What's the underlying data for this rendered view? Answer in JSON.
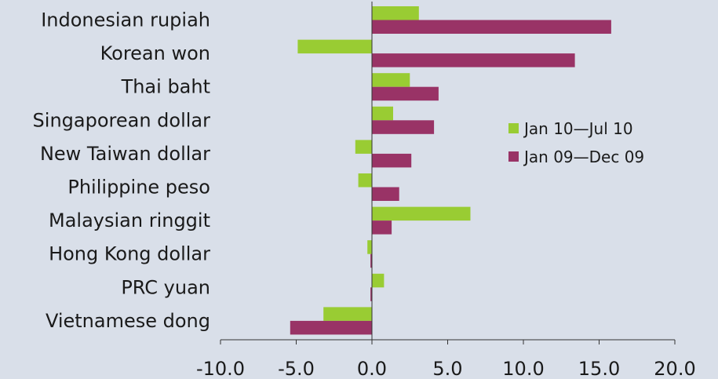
{
  "chart_data": {
    "type": "bar",
    "orientation": "horizontal",
    "categories": [
      "Indonesian rupiah",
      "Korean won",
      "Thai baht",
      "Singaporean dollar",
      "New Taiwan dollar",
      "Philippine peso",
      "Malaysian ringgit",
      "Hong Kong dollar",
      "PRC yuan",
      "Vietnamese dong"
    ],
    "series": [
      {
        "name": "Jan 10—Jul 10",
        "color": "#99cc33",
        "values": [
          3.1,
          -4.9,
          2.5,
          1.4,
          -1.1,
          -0.9,
          6.5,
          -0.3,
          0.8,
          -3.2
        ]
      },
      {
        "name": "Jan 09—Dec 09",
        "color": "#993366",
        "values": [
          15.8,
          13.4,
          4.4,
          4.1,
          2.6,
          1.8,
          1.3,
          -0.1,
          -0.1,
          -5.4
        ]
      }
    ],
    "xlim": [
      -10.0,
      20.0
    ],
    "ticks": [
      "-10.0",
      "-5.0",
      "0.0",
      "5.0",
      "10.0",
      "15.0",
      "20.0"
    ],
    "title": "",
    "xlabel": "",
    "ylabel": "",
    "legend_position": "right",
    "grid": false
  }
}
